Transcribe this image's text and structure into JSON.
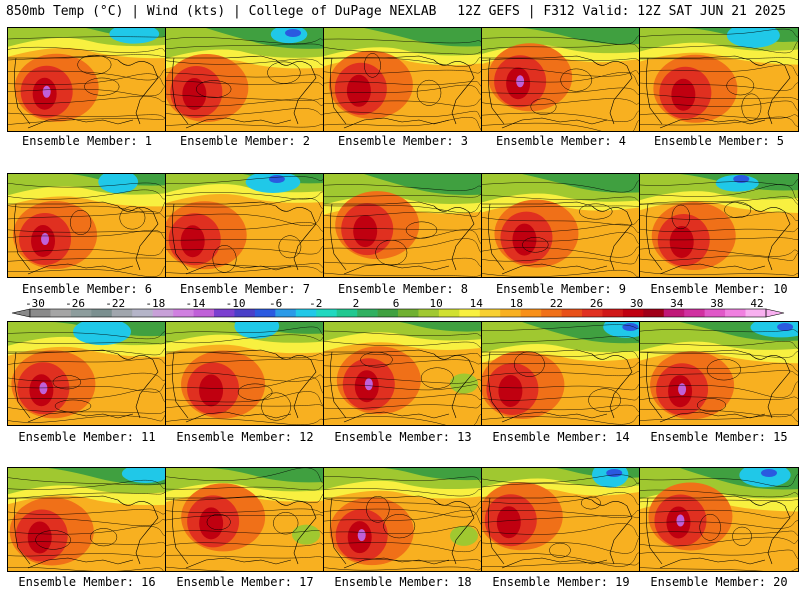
{
  "header": {
    "left": "850mb Temp (°C) | Wind (kts) | College of DuPage NEXLAB",
    "right": "12Z GEFS | F312 Valid: 12Z SAT JUN 21 2025"
  },
  "panel_label_prefix": "Ensemble Member: ",
  "members": [
    1,
    2,
    3,
    4,
    5,
    6,
    7,
    8,
    9,
    10,
    11,
    12,
    13,
    14,
    15,
    16,
    17,
    18,
    19,
    20
  ],
  "colorbar": {
    "labels": [
      "-30",
      "-26",
      "-22",
      "-18",
      "-14",
      "-10",
      "-6",
      "-2",
      "2",
      "6",
      "10",
      "14",
      "18",
      "22",
      "26",
      "30",
      "34",
      "38",
      "42"
    ],
    "colors": [
      "#8a8a8a",
      "#a5a5a5",
      "#8c9c9c",
      "#7a8f8f",
      "#a0a6ad",
      "#b4b4c8",
      "#c8a0d8",
      "#d080e0",
      "#c060d8",
      "#7b3fd0",
      "#4a3fc8",
      "#2a5ae0",
      "#2a9ae8",
      "#20c8e8",
      "#20d8c0",
      "#20c890",
      "#30b060",
      "#40a040",
      "#70b030",
      "#a0c830",
      "#d0e030",
      "#f8f040",
      "#f8d030",
      "#f8b020",
      "#f89018",
      "#f07018",
      "#e85018",
      "#e03020",
      "#d01818",
      "#c00010",
      "#a00018",
      "#c01878",
      "#d030a0",
      "#e058c8",
      "#f080e0",
      "#f8b0f0"
    ]
  },
  "map_colors": {
    "cold_blue": "#2a5ae0",
    "cyan": "#20c8e8",
    "green": "#40a040",
    "light_green": "#a0c830",
    "yellow": "#f8f040",
    "orange": "#f8b020",
    "dark_orange": "#f07018",
    "red": "#e03020",
    "dark_red": "#c00010",
    "purple": "#c060d8"
  }
}
